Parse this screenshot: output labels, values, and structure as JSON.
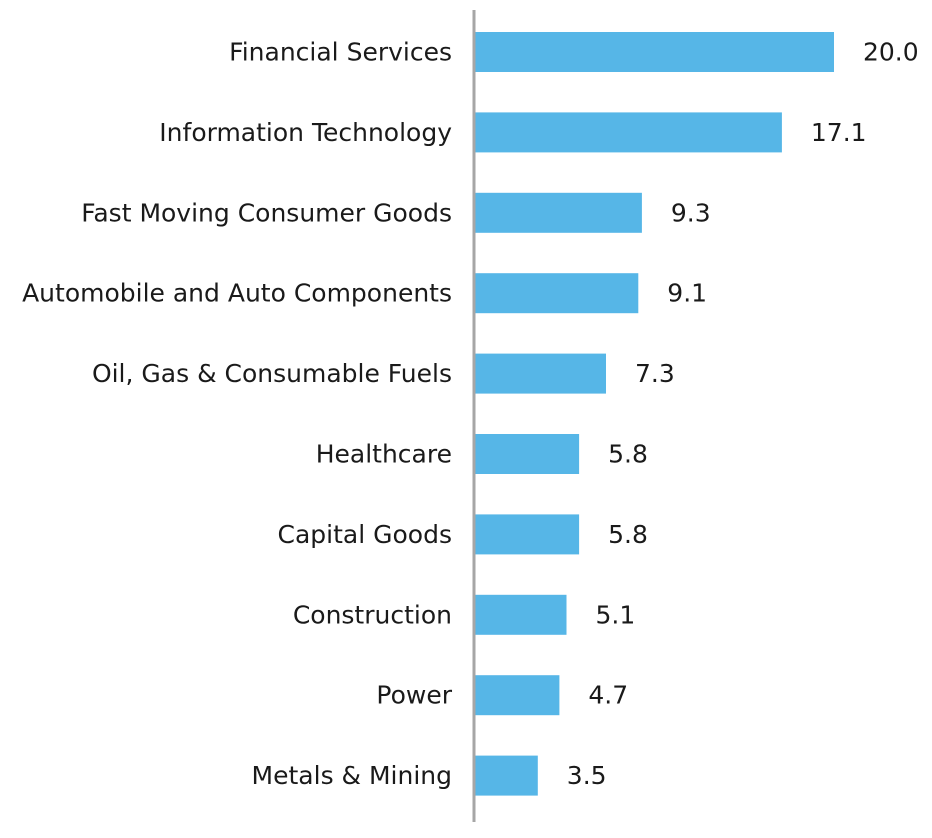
{
  "chart_data": {
    "type": "bar",
    "orientation": "horizontal",
    "title": "",
    "xlabel": "",
    "ylabel": "",
    "categories": [
      "Financial Services",
      "Information Technology",
      "Fast Moving Consumer Goods",
      "Automobile and Auto Components",
      "Oil, Gas & Consumable Fuels",
      "Healthcare",
      "Capital Goods",
      "Construction",
      "Power",
      "Metals & Mining"
    ],
    "values": [
      20.0,
      17.1,
      9.3,
      9.1,
      7.3,
      5.8,
      5.8,
      5.1,
      4.7,
      3.5
    ],
    "value_labels": [
      "20.0",
      "17.1",
      "9.3",
      "9.1",
      "7.3",
      "5.8",
      "5.8",
      "5.1",
      "4.7",
      "3.5"
    ],
    "xlim": [
      0,
      20.0
    ],
    "grid": false,
    "legend": "none",
    "colors": {
      "bar": "#56b6e7",
      "axis": "#a6a6a6",
      "text": "#1a1a1a"
    }
  }
}
